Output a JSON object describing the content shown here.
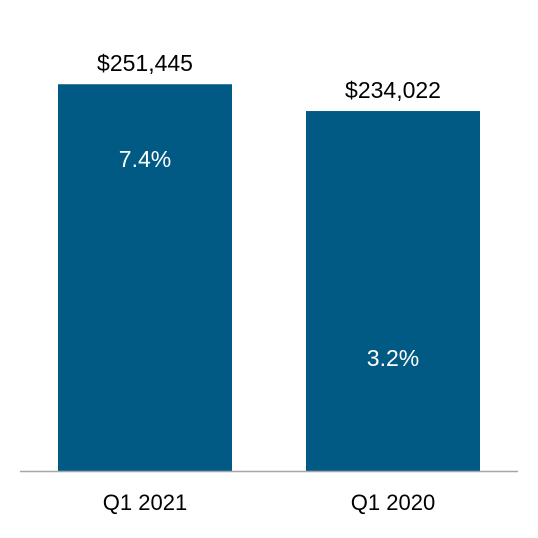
{
  "chart_data": {
    "type": "bar",
    "categories": [
      "Q1 2021",
      "Q1 2020"
    ],
    "values": [
      251445,
      234022
    ],
    "value_labels": [
      "$251,445",
      "$234,022"
    ],
    "inner_labels": [
      "7.4%",
      "3.2%"
    ],
    "title": "",
    "xlabel": "",
    "ylabel": "",
    "ylim": [
      0,
      262000
    ],
    "grid": false,
    "colors": {
      "bar": "#005a83",
      "baseline": "#a6a6a6",
      "value_text": "#000000",
      "inner_text": "#ffffff"
    }
  }
}
